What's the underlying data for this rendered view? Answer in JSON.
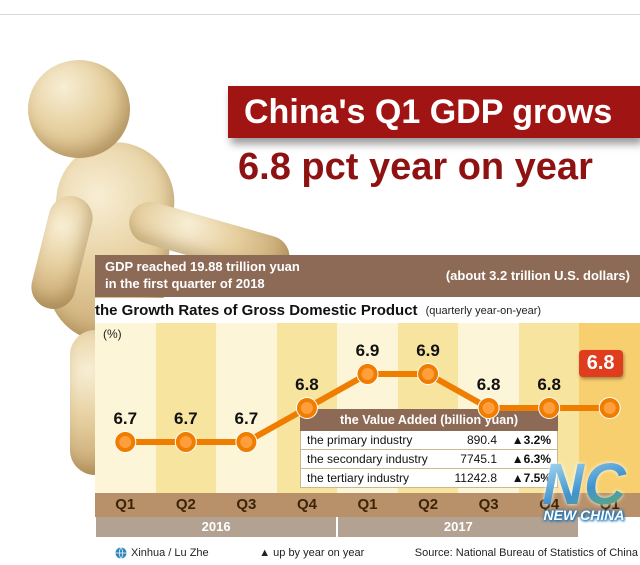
{
  "header": {
    "title": "China's Q1 GDP grows",
    "subtitle": "6.8 pct year on year"
  },
  "info_bar": {
    "left_line1": "GDP reached 19.88 trillion yuan",
    "left_line2": "in the first quarter of 2018",
    "right": "(about 3.2 trillion U.S. dollars)"
  },
  "chart_data": {
    "type": "line",
    "title": "the Growth Rates of Gross Domestic Product",
    "subtitle": "(quarterly year-on-year)",
    "ylabel": "(%)",
    "categories": [
      "Q1",
      "Q2",
      "Q3",
      "Q4",
      "Q1",
      "Q2",
      "Q3",
      "Q4",
      "Q1"
    ],
    "values": [
      6.7,
      6.7,
      6.7,
      6.8,
      6.9,
      6.9,
      6.8,
      6.8,
      6.8
    ],
    "highlight_index": 8,
    "year_bands": [
      {
        "label": "2016",
        "start": 0,
        "end": 3
      },
      {
        "label": "2017",
        "start": 4,
        "end": 7
      }
    ],
    "ylim": [
      6.55,
      7.05
    ],
    "grid": false,
    "legend": "none",
    "line_color": "#ef7d00",
    "marker_fill": "#ff9e3d",
    "highlight_box_color": "#e03c1e"
  },
  "value_table": {
    "title": "the Value Added (billion yuan)",
    "rows": [
      {
        "label": "the primary industry",
        "value": "890.4",
        "change": "▲3.2%"
      },
      {
        "label": "the secondary industry",
        "value": "7745.1",
        "change": "▲6.3%"
      },
      {
        "label": "the tertiary industry",
        "value": "11242.8",
        "change": "▲7.5%"
      }
    ]
  },
  "footer": {
    "credit": "Xinhua / Lu Zhe",
    "legend": "▲ up by year on year",
    "source": "Source: National Bureau of Statistics of China"
  },
  "logo": {
    "letters": "NC",
    "caption": "NEW CHINA"
  },
  "colors": {
    "banner_red": "#a11414",
    "subtitle_red": "#8e1212",
    "info_bar_brown": "#8d6a55",
    "table_header_brown": "#8d6a55",
    "axis_band": "#b8916a",
    "year_band": "#b3a192"
  }
}
